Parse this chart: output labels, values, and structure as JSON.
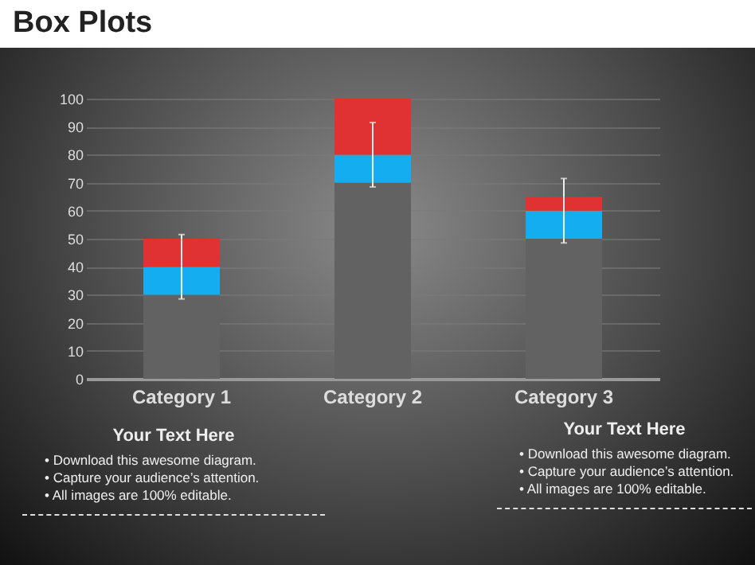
{
  "chart_data": {
    "type": "bar",
    "title": "Box Plots",
    "stacked": true,
    "categories": [
      "Category 1",
      "Category 2",
      "Category 3"
    ],
    "series": [
      {
        "color": "#626262",
        "values": [
          30,
          70,
          50
        ]
      },
      {
        "color": "#14aef0",
        "values": [
          10,
          10,
          10
        ],
        "errors": [
          11.5,
          11.5,
          11.5
        ]
      },
      {
        "color": "#e03232",
        "values": [
          10,
          20,
          5
        ]
      }
    ],
    "ylim": [
      0,
      100
    ],
    "yticks": [
      0,
      10,
      20,
      30,
      40,
      50,
      60,
      70,
      80,
      90,
      100
    ],
    "grid": "y",
    "annotations": [
      "Your Text Here",
      "• Download this awesome diagram.",
      "• Capture your audience’s attention.",
      "• All images are 100% editable.",
      "Your Text Here",
      "• Download this awesome diagram.",
      "• Capture your audience’s attention.",
      "• All images are 100% editable."
    ]
  }
}
